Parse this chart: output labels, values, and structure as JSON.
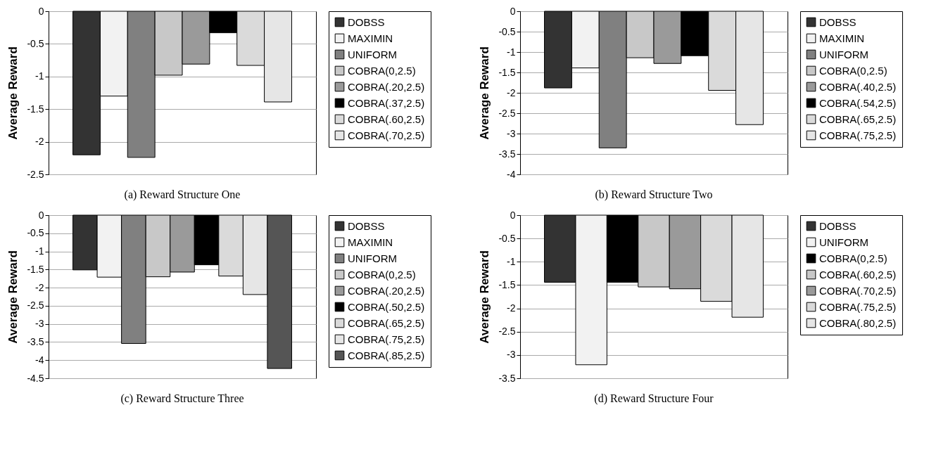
{
  "chart_data": [
    {
      "type": "bar",
      "title": "(a)  Reward Structure One",
      "ylabel": "Average Reward",
      "categories": [
        null
      ],
      "ylim": [
        -2.5,
        0
      ],
      "yticks": [
        -2.5,
        -2,
        -1.5,
        -1,
        -0.5,
        0
      ],
      "grid": "y",
      "legend": "right",
      "series": [
        {
          "name": "DOBSS",
          "color": "#333333",
          "values": [
            -2.2
          ]
        },
        {
          "name": "MAXIMIN",
          "color": "#f2f2f2",
          "values": [
            -1.3
          ]
        },
        {
          "name": "UNIFORM",
          "color": "#808080",
          "values": [
            -2.24
          ]
        },
        {
          "name": "COBRA(0,2.5)",
          "color": "#c8c8c8",
          "values": [
            -0.98
          ]
        },
        {
          "name": "COBRA(.20,2.5)",
          "color": "#9a9a9a",
          "values": [
            -0.81
          ]
        },
        {
          "name": "COBRA(.37,2.5)",
          "color": "#000000",
          "values": [
            -0.33
          ]
        },
        {
          "name": "COBRA(.60,2.5)",
          "color": "#dadada",
          "values": [
            -0.83
          ]
        },
        {
          "name": "COBRA(.70,2.5)",
          "color": "#e6e6e6",
          "values": [
            -1.39
          ]
        }
      ]
    },
    {
      "type": "bar",
      "title": "(b)  Reward Structure Two",
      "ylabel": "Average Reward",
      "categories": [
        null
      ],
      "ylim": [
        -4,
        0
      ],
      "yticks": [
        -4,
        -3.5,
        -3,
        -2.5,
        -2,
        -1.5,
        -1,
        -0.5,
        0
      ],
      "grid": "y",
      "legend": "right",
      "series": [
        {
          "name": "DOBSS",
          "color": "#333333",
          "values": [
            -1.88
          ]
        },
        {
          "name": "MAXIMIN",
          "color": "#f2f2f2",
          "values": [
            -1.39
          ]
        },
        {
          "name": "UNIFORM",
          "color": "#808080",
          "values": [
            -3.35
          ]
        },
        {
          "name": "COBRA(0,2.5)",
          "color": "#c8c8c8",
          "values": [
            -1.14
          ]
        },
        {
          "name": "COBRA(.40,2.5)",
          "color": "#9a9a9a",
          "values": [
            -1.28
          ]
        },
        {
          "name": "COBRA(.54,2.5)",
          "color": "#000000",
          "values": [
            -1.09
          ]
        },
        {
          "name": "COBRA(.65,2.5)",
          "color": "#dadada",
          "values": [
            -1.94
          ]
        },
        {
          "name": "COBRA(.75,2.5)",
          "color": "#e6e6e6",
          "values": [
            -2.78
          ]
        }
      ]
    },
    {
      "type": "bar",
      "title": "(c)  Reward Structure Three",
      "ylabel": "Average Reward",
      "categories": [
        null
      ],
      "ylim": [
        -4.5,
        0
      ],
      "yticks": [
        -4.5,
        -4,
        -3.5,
        -3,
        -2.5,
        -2,
        -1.5,
        -1,
        -0.5,
        0
      ],
      "grid": "y",
      "legend": "right",
      "series": [
        {
          "name": "DOBSS",
          "color": "#333333",
          "values": [
            -1.51
          ]
        },
        {
          "name": "MAXIMIN",
          "color": "#f2f2f2",
          "values": [
            -1.71
          ]
        },
        {
          "name": "UNIFORM",
          "color": "#808080",
          "values": [
            -3.54
          ]
        },
        {
          "name": "COBRA(0,2.5)",
          "color": "#c8c8c8",
          "values": [
            -1.7
          ]
        },
        {
          "name": "COBRA(.20,2.5)",
          "color": "#9a9a9a",
          "values": [
            -1.57
          ]
        },
        {
          "name": "COBRA(.50,2.5)",
          "color": "#000000",
          "values": [
            -1.37
          ]
        },
        {
          "name": "COBRA(.65,2.5)",
          "color": "#dadada",
          "values": [
            -1.68
          ]
        },
        {
          "name": "COBRA(.75,2.5)",
          "color": "#e6e6e6",
          "values": [
            -2.19
          ]
        },
        {
          "name": "COBRA(.85,2.5)",
          "color": "#555555",
          "values": [
            -4.23
          ]
        }
      ]
    },
    {
      "type": "bar",
      "title": "(d)  Reward Structure Four",
      "ylabel": "Average Reward",
      "categories": [
        null
      ],
      "ylim": [
        -3.5,
        0
      ],
      "yticks": [
        -3.5,
        -3,
        -2.5,
        -2,
        -1.5,
        -1,
        -0.5,
        0
      ],
      "grid": "y",
      "legend": "right",
      "series": [
        {
          "name": "DOBSS",
          "color": "#333333",
          "values": [
            -1.44
          ]
        },
        {
          "name": "UNIFORM",
          "color": "#f2f2f2",
          "values": [
            -3.21
          ]
        },
        {
          "name": "COBRA(0,2.5)",
          "color": "#000000",
          "values": [
            -1.44
          ]
        },
        {
          "name": "COBRA(.60,2.5)",
          "color": "#c8c8c8",
          "values": [
            -1.54
          ]
        },
        {
          "name": "COBRA(.70,2.5)",
          "color": "#9a9a9a",
          "values": [
            -1.58
          ]
        },
        {
          "name": "COBRA(.75,2.5)",
          "color": "#dadada",
          "values": [
            -1.85
          ]
        },
        {
          "name": "COBRA(.80,2.5)",
          "color": "#e6e6e6",
          "values": [
            -2.19
          ]
        }
      ]
    }
  ]
}
